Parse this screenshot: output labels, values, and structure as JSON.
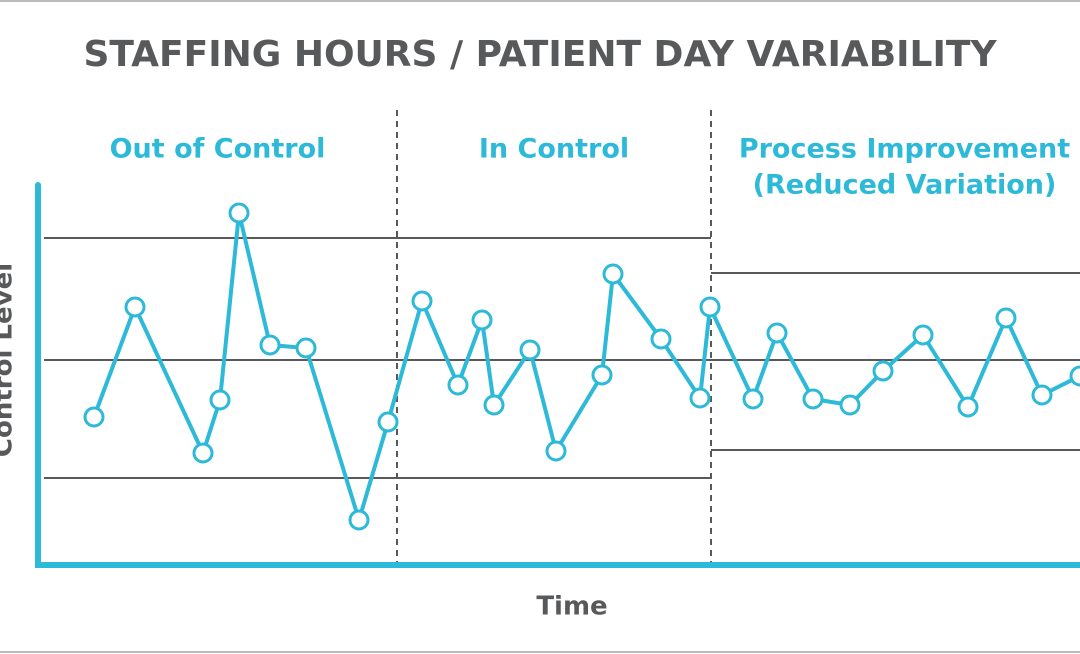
{
  "chart_data": {
    "type": "line",
    "title": "STAFFING HOURS / PATIENT DAY VARIABILITY",
    "x_label": "Time",
    "y_label": "Control Level",
    "xlim": [
      0,
      104.2
    ],
    "ylim": [
      0,
      38
    ],
    "x": [
      5.6,
      9.7,
      16.5,
      18.2,
      20.1,
      23.2,
      26.8,
      32.1,
      35.0,
      38.4,
      42.0,
      44.4,
      45.6,
      49.2,
      51.8,
      56.4,
      57.5,
      62.3,
      66.2,
      67.2,
      71.5,
      73.9,
      77.5,
      81.2,
      84.5,
      88.5,
      93.0,
      96.8,
      100.4,
      104.2
    ],
    "series": [
      {
        "color": "#2db9d8",
        "values": [
          14.8,
          25.8,
          11.2,
          16.5,
          35.2,
          22.0,
          21.7,
          4.5,
          14.3,
          26.4,
          18.0,
          24.5,
          16.0,
          21.5,
          11.4,
          19.0,
          29.1,
          22.6,
          16.7,
          25.8,
          16.6,
          23.2,
          16.6,
          16.0,
          19.4,
          23.0,
          15.8,
          24.7,
          17.0,
          18.9
        ]
      }
    ],
    "center_line": {
      "value": 20.5,
      "x": [
        0.6,
        104.2
      ]
    },
    "limits": [
      {
        "x": [
          0.6,
          67.3
        ],
        "upper": 32.7,
        "lower": 8.7
      },
      {
        "x": [
          67.3,
          104.2
        ],
        "upper": 29.2,
        "lower": 11.5
      }
    ],
    "phase_dividers": [
      35.9,
      67.3
    ],
    "phases": [
      {
        "x": [
          0,
          35.9
        ],
        "lines": [
          "Out of Control"
        ]
      },
      {
        "x": [
          35.9,
          67.3
        ],
        "lines": [
          "In Control"
        ]
      },
      {
        "x": [
          67.3,
          106
        ],
        "lines": [
          "Process Improvement",
          "(Reduced Variation)"
        ]
      }
    ]
  }
}
